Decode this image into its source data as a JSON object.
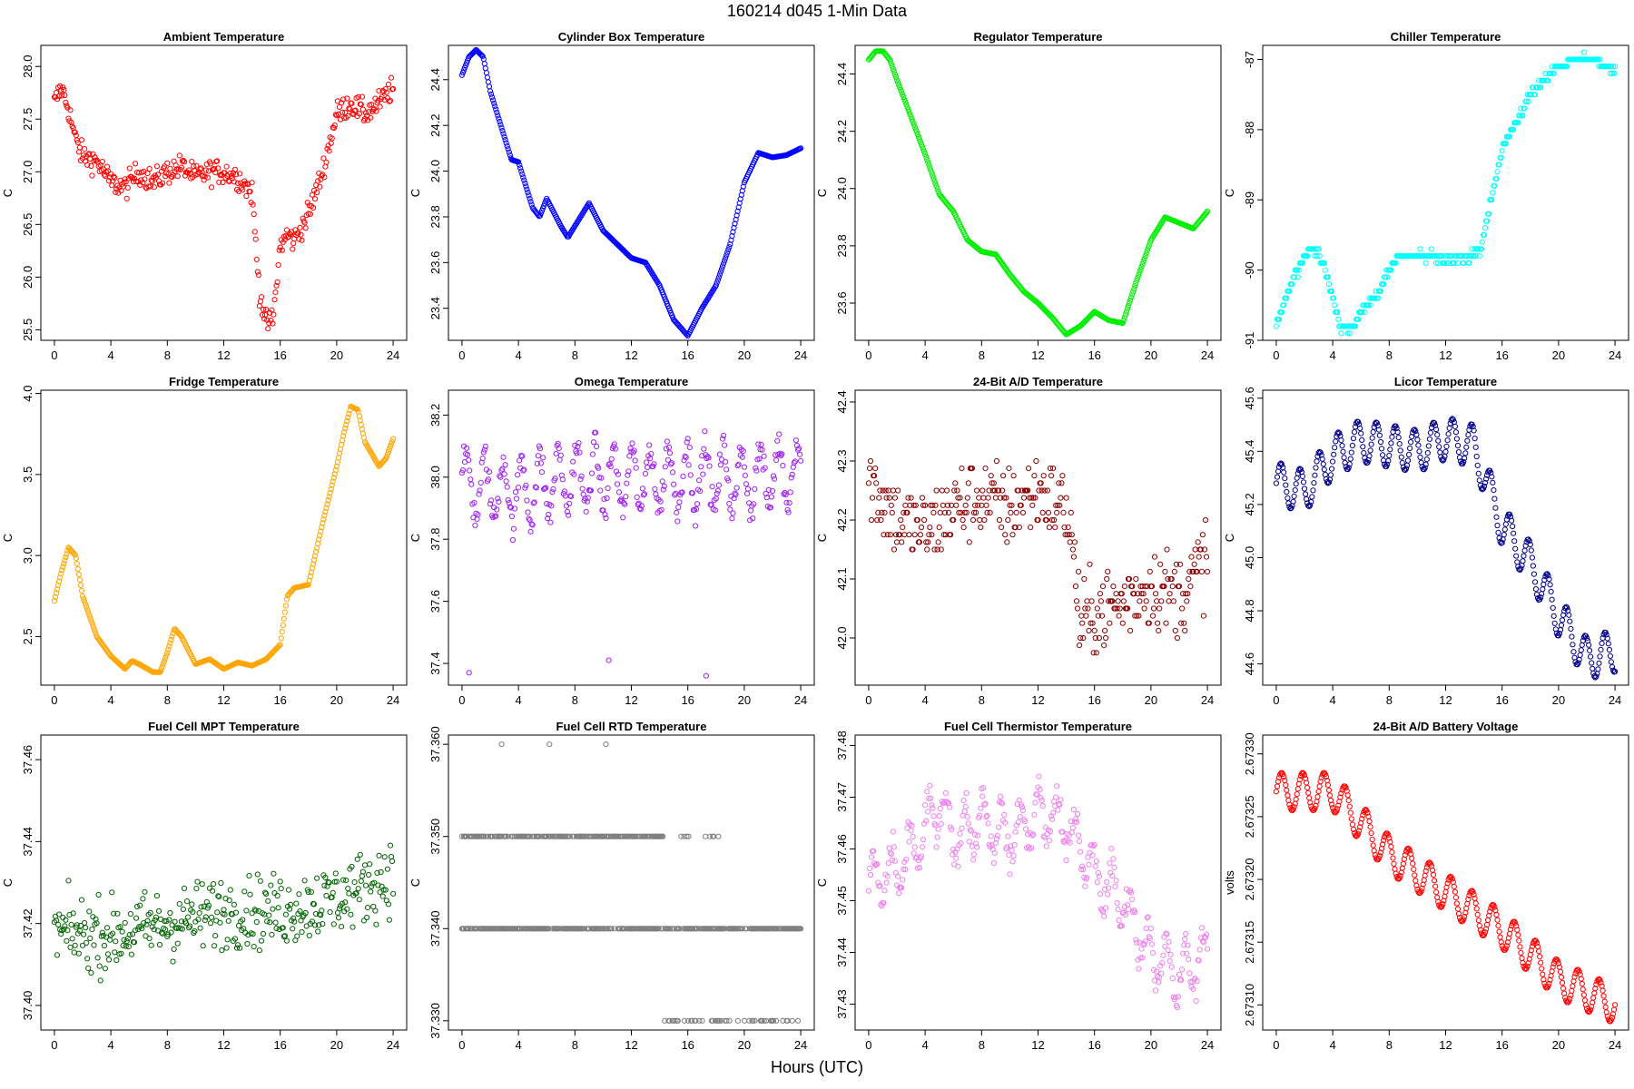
{
  "figure": {
    "title": "160214   d045   1-Min Data",
    "xlabel": "Hours (UTC)"
  },
  "chart_data": [
    {
      "type": "scatter",
      "title": "Ambient Temperature",
      "xlabel": "",
      "ylabel": "C",
      "color": "#ff0000",
      "xlim": [
        0,
        24
      ],
      "ylim": [
        25.4,
        28.2
      ],
      "xticks": [
        0,
        4,
        8,
        12,
        16,
        20,
        24
      ],
      "yticks": [
        25.5,
        26.0,
        26.5,
        27.0,
        27.5,
        28.0
      ],
      "ytick_labels": [
        "25.5",
        "26.0",
        "26.5",
        "27.0",
        "27.5",
        "28.0"
      ],
      "ytick_rotate": true,
      "mode": "points",
      "x": [
        0,
        0.5,
        1,
        1.5,
        2,
        3,
        4,
        5,
        6,
        7,
        8,
        9,
        10,
        11,
        12,
        13,
        14,
        14.5,
        15,
        15.5,
        16,
        16.5,
        17,
        18,
        19,
        20,
        21,
        22,
        23,
        24
      ],
      "y": [
        27.65,
        27.8,
        27.6,
        27.3,
        27.15,
        27.1,
        26.9,
        26.85,
        27.0,
        26.9,
        27.0,
        27.05,
        26.95,
        27.0,
        27.0,
        26.95,
        26.8,
        25.9,
        25.55,
        25.6,
        26.3,
        26.4,
        26.35,
        26.6,
        27.0,
        27.55,
        27.65,
        27.55,
        27.65,
        27.8
      ],
      "noise": 0.12
    },
    {
      "type": "scatter",
      "title": "Cylinder Box Temperature",
      "xlabel": "",
      "ylabel": "C",
      "color": "#0000ff",
      "xlim": [
        0,
        24
      ],
      "ylim": [
        23.26,
        24.55
      ],
      "xticks": [
        0,
        4,
        8,
        12,
        16,
        20,
        24
      ],
      "yticks": [
        23.4,
        23.6,
        23.8,
        24.0,
        24.2,
        24.4
      ],
      "ytick_labels": [
        "23.4",
        "23.6",
        "23.8",
        "24.0",
        "24.2",
        "24.4"
      ],
      "ytick_rotate": true,
      "mode": "band",
      "x": [
        0,
        0.5,
        1,
        1.5,
        2,
        3,
        3.5,
        4,
        5,
        5.5,
        6,
        7,
        7.5,
        8,
        9,
        10,
        11,
        12,
        13,
        14,
        15,
        16,
        17,
        18,
        19,
        20,
        21,
        22,
        23,
        24
      ],
      "y": [
        24.42,
        24.5,
        24.53,
        24.5,
        24.35,
        24.15,
        24.05,
        24.04,
        23.84,
        23.8,
        23.88,
        23.76,
        23.71,
        23.76,
        23.86,
        23.74,
        23.68,
        23.62,
        23.6,
        23.5,
        23.35,
        23.28,
        23.4,
        23.5,
        23.68,
        23.95,
        24.08,
        24.06,
        24.07,
        24.1
      ],
      "noise": 0.0
    },
    {
      "type": "scatter",
      "title": "Regulator Temperature",
      "xlabel": "",
      "ylabel": "C",
      "color": "#00ee00",
      "xlim": [
        0,
        24
      ],
      "ylim": [
        23.47,
        24.5
      ],
      "xticks": [
        0,
        4,
        8,
        12,
        16,
        20,
        24
      ],
      "yticks": [
        23.6,
        23.8,
        24.0,
        24.2,
        24.4
      ],
      "ytick_labels": [
        "23.6",
        "23.8",
        "24.0",
        "24.2",
        "24.4"
      ],
      "ytick_rotate": true,
      "mode": "band",
      "x": [
        0,
        0.5,
        1,
        1.5,
        2,
        3,
        4,
        5,
        6,
        7,
        8,
        9,
        10,
        11,
        12,
        13,
        14,
        15,
        16,
        17,
        18,
        19,
        20,
        21,
        22,
        23,
        24
      ],
      "y": [
        24.45,
        24.48,
        24.48,
        24.45,
        24.38,
        24.25,
        24.12,
        23.98,
        23.92,
        23.82,
        23.78,
        23.77,
        23.7,
        23.64,
        23.6,
        23.55,
        23.49,
        23.52,
        23.57,
        23.54,
        23.53,
        23.68,
        23.82,
        23.9,
        23.88,
        23.86,
        23.92
      ],
      "noise": 0.0
    },
    {
      "type": "scatter",
      "title": "Chiller Temperature",
      "xlabel": "",
      "ylabel": "C",
      "color": "#00ffff",
      "xlim": [
        0,
        24
      ],
      "ylim": [
        -91.0,
        -86.8
      ],
      "xticks": [
        0,
        4,
        8,
        12,
        16,
        20,
        24
      ],
      "yticks": [
        -91,
        -90,
        -89,
        -88,
        -87
      ],
      "ytick_labels": [
        "-91",
        "-90",
        "-89",
        "-88",
        "-87"
      ],
      "ytick_rotate": true,
      "mode": "step",
      "x": [
        0,
        0.5,
        1,
        1.5,
        2,
        2.5,
        3,
        3.5,
        4,
        4.5,
        5,
        5.5,
        6,
        7,
        8,
        8.5,
        9,
        10,
        11,
        12,
        13,
        14,
        14.5,
        15,
        16,
        17,
        18,
        19,
        20,
        21,
        22,
        23,
        24
      ],
      "y": [
        -90.8,
        -90.5,
        -90.2,
        -90.0,
        -89.8,
        -89.7,
        -89.75,
        -90.0,
        -90.4,
        -90.8,
        -90.85,
        -90.8,
        -90.6,
        -90.4,
        -90.0,
        -89.85,
        -89.8,
        -89.8,
        -89.8,
        -89.85,
        -89.85,
        -89.8,
        -89.7,
        -89.2,
        -88.3,
        -87.9,
        -87.5,
        -87.3,
        -87.1,
        -87.0,
        -87.0,
        -87.05,
        -87.15
      ],
      "noise": 0.06
    },
    {
      "type": "scatter",
      "title": "Fridge Temperature",
      "xlabel": "",
      "ylabel": "C",
      "color": "#ffa500",
      "xlim": [
        0,
        24
      ],
      "ylim": [
        2.2,
        4.02
      ],
      "xticks": [
        0,
        4,
        8,
        12,
        16,
        20,
        24
      ],
      "yticks": [
        2.5,
        3.0,
        3.5,
        4.0
      ],
      "ytick_labels": [
        "2.5",
        "3.0",
        "3.5",
        "4.0"
      ],
      "ytick_rotate": true,
      "mode": "band",
      "x": [
        0,
        0.5,
        1,
        1.5,
        2,
        3,
        4,
        5,
        5.5,
        6,
        7,
        7.5,
        8,
        8.5,
        9,
        10,
        11,
        12,
        12.5,
        13,
        14,
        15,
        16,
        16.5,
        17,
        18,
        19,
        20,
        20.5,
        21,
        21.5,
        22,
        23,
        23.5,
        24
      ],
      "y": [
        2.72,
        2.9,
        3.05,
        3.0,
        2.75,
        2.5,
        2.38,
        2.3,
        2.35,
        2.33,
        2.28,
        2.28,
        2.4,
        2.55,
        2.5,
        2.33,
        2.36,
        2.3,
        2.32,
        2.34,
        2.32,
        2.36,
        2.45,
        2.75,
        2.8,
        2.82,
        3.2,
        3.55,
        3.75,
        3.92,
        3.9,
        3.7,
        3.55,
        3.6,
        3.72
      ],
      "noise": 0.0
    },
    {
      "type": "scatter",
      "title": "Omega Temperature",
      "xlabel": "",
      "ylabel": "C",
      "color": "#a020f0",
      "xlim": [
        0,
        24
      ],
      "ylim": [
        37.33,
        38.28
      ],
      "xticks": [
        0,
        4,
        8,
        12,
        16,
        20,
        24
      ],
      "yticks": [
        37.4,
        37.6,
        37.8,
        38.0,
        38.2
      ],
      "ytick_labels": [
        "37.4",
        "37.6",
        "37.8",
        "38.0",
        "38.2"
      ],
      "ytick_rotate": true,
      "mode": "wave",
      "x": [
        0,
        4,
        8,
        12,
        16,
        20,
        24
      ],
      "y": [
        37.98,
        37.95,
        38.0,
        37.99,
        38.0,
        37.99,
        38.02
      ],
      "amplitude": 0.1,
      "period": 1.3,
      "noise": 0.05,
      "outliers": [
        [
          0.5,
          37.37
        ],
        [
          10.4,
          37.41
        ],
        [
          17.3,
          37.36
        ]
      ]
    },
    {
      "type": "scatter",
      "title": "24-Bit A/D Temperature",
      "xlabel": "",
      "ylabel": "C",
      "color": "#8b0000",
      "xlim": [
        0,
        24
      ],
      "ylim": [
        41.92,
        42.42
      ],
      "xticks": [
        0,
        4,
        8,
        12,
        16,
        20,
        24
      ],
      "yticks": [
        42.0,
        42.1,
        42.2,
        42.3,
        42.4
      ],
      "ytick_labels": [
        "42.0",
        "42.1",
        "42.2",
        "42.3",
        "42.4"
      ],
      "ytick_rotate": true,
      "mode": "quant",
      "x": [
        0,
        2,
        4,
        6,
        8,
        10,
        12,
        14,
        14.5,
        15,
        16,
        18,
        20,
        22,
        24
      ],
      "y": [
        42.27,
        42.2,
        42.18,
        42.22,
        42.24,
        42.22,
        42.25,
        42.22,
        42.15,
        42.02,
        42.04,
        42.06,
        42.09,
        42.07,
        42.14
      ],
      "noise": 0.07,
      "step": 0.0125
    },
    {
      "type": "scatter",
      "title": "Licor Temperature",
      "xlabel": "",
      "ylabel": "C",
      "color": "#00008b",
      "xlim": [
        0,
        24
      ],
      "ylim": [
        44.52,
        45.63
      ],
      "xticks": [
        0,
        4,
        8,
        12,
        16,
        20,
        24
      ],
      "yticks": [
        44.6,
        44.8,
        45.0,
        45.2,
        45.4,
        45.6
      ],
      "ytick_labels": [
        "44.6",
        "44.8",
        "45.0",
        "45.2",
        "45.4",
        "45.6"
      ],
      "ytick_rotate": true,
      "mode": "wave",
      "x": [
        0,
        2,
        4,
        6,
        8,
        10,
        12,
        14,
        16,
        18,
        20,
        22,
        24
      ],
      "y": [
        45.28,
        45.25,
        45.38,
        45.44,
        45.42,
        45.4,
        45.45,
        45.42,
        45.12,
        44.98,
        44.78,
        44.62,
        44.65
      ],
      "amplitude": 0.08,
      "period": 1.35,
      "noise": 0.0
    },
    {
      "type": "scatter",
      "title": "Fuel Cell MPT Temperature",
      "xlabel": "",
      "ylabel": "C",
      "color": "#006400",
      "xlim": [
        0,
        24
      ],
      "ylim": [
        37.394,
        37.466
      ],
      "xticks": [
        0,
        4,
        8,
        12,
        16,
        20,
        24
      ],
      "yticks": [
        37.4,
        37.42,
        37.44,
        37.46
      ],
      "ytick_labels": [
        "37.40",
        "37.42",
        "37.44",
        "37.46"
      ],
      "ytick_rotate": true,
      "mode": "points",
      "x": [
        0,
        4,
        8,
        12,
        16,
        20,
        24
      ],
      "y": [
        37.418,
        37.417,
        37.42,
        37.423,
        37.423,
        37.426,
        37.432
      ],
      "noise": 0.009
    },
    {
      "type": "scatter",
      "title": "Fuel Cell RTD Temperature",
      "xlabel": "",
      "ylabel": "C",
      "color": "#7f7f7f",
      "xlim": [
        0,
        24
      ],
      "ylim": [
        37.329,
        37.361
      ],
      "xticks": [
        0,
        4,
        8,
        12,
        16,
        20,
        24
      ],
      "yticks": [
        37.33,
        37.34,
        37.35,
        37.36
      ],
      "ytick_labels": [
        "37.330",
        "37.340",
        "37.350",
        "37.360"
      ],
      "ytick_rotate": true,
      "mode": "levels",
      "x": [],
      "y": [],
      "levels": [
        {
          "value": 37.35,
          "from": 0,
          "to": 14.5,
          "density": 0.75
        },
        {
          "value": 37.35,
          "from": 15.2,
          "to": 18.5,
          "density": 0.25
        },
        {
          "value": 37.34,
          "from": 0,
          "to": 24,
          "density": 0.8
        },
        {
          "value": 37.33,
          "from": 14.3,
          "to": 24,
          "density": 0.35
        }
      ],
      "outliers": [
        [
          2.8,
          37.36
        ],
        [
          6.2,
          37.36
        ],
        [
          10.2,
          37.36
        ]
      ]
    },
    {
      "type": "scatter",
      "title": "Fuel Cell Thermistor Temperature",
      "xlabel": "",
      "ylabel": "C",
      "color": "#ee82ee",
      "xlim": [
        0,
        24
      ],
      "ylim": [
        37.425,
        37.482
      ],
      "xticks": [
        0,
        4,
        8,
        12,
        16,
        20,
        24
      ],
      "yticks": [
        37.43,
        37.44,
        37.45,
        37.46,
        37.47,
        37.48
      ],
      "ytick_labels": [
        "37.43",
        "37.44",
        "37.45",
        "37.46",
        "37.47",
        "37.48"
      ],
      "ytick_rotate": true,
      "mode": "wave",
      "x": [
        0,
        2,
        4,
        5,
        6,
        8,
        10,
        12,
        14,
        16,
        18,
        20,
        22,
        24
      ],
      "y": [
        37.453,
        37.456,
        37.463,
        37.47,
        37.462,
        37.466,
        37.462,
        37.467,
        37.465,
        37.455,
        37.45,
        37.44,
        37.435,
        37.44
      ],
      "amplitude": 0.005,
      "period": 1.3,
      "noise": 0.003
    },
    {
      "type": "scatter",
      "title": "24-Bit A/D Battery Voltage",
      "xlabel": "",
      "ylabel": "volts",
      "color": "#ff0000",
      "xlim": [
        0,
        24
      ],
      "ylim": [
        2.67308,
        2.673315
      ],
      "xticks": [
        0,
        4,
        8,
        12,
        16,
        20,
        24
      ],
      "yticks": [
        2.6731,
        2.67315,
        2.6732,
        2.67325,
        2.6733
      ],
      "ytick_labels": [
        "2.67310",
        "2.67315",
        "2.67320",
        "2.67325",
        "2.67330"
      ],
      "ytick_rotate": true,
      "mode": "wave",
      "x": [
        0,
        4,
        8,
        12,
        16,
        20,
        24
      ],
      "y": [
        2.67327,
        2.67327,
        2.67322,
        2.67319,
        2.67316,
        2.67312,
        2.6731
      ],
      "amplitude": 1.5e-05,
      "period": 1.5,
      "noise": 0.0
    }
  ]
}
